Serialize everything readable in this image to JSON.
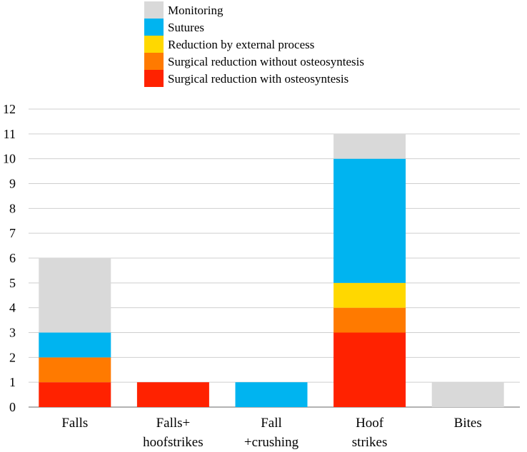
{
  "chart_data": {
    "type": "bar",
    "stacked": true,
    "categories": [
      [
        "Falls"
      ],
      [
        "Falls+",
        "hoofstrikes"
      ],
      [
        "Fall",
        "+crushing"
      ],
      [
        "Hoof",
        "strikes"
      ],
      [
        "Bites"
      ]
    ],
    "series": [
      {
        "name": "Surgical reduction with osteosyntesis",
        "color": "#ff2200",
        "values": [
          1,
          1,
          0,
          3,
          0
        ]
      },
      {
        "name": "Surgical reduction without osteosyntesis",
        "color": "#ff7a00",
        "values": [
          1,
          0,
          0,
          1,
          0
        ]
      },
      {
        "name": "Reduction by external process",
        "color": "#ffd800",
        "values": [
          0,
          0,
          0,
          1,
          0
        ]
      },
      {
        "name": "Sutures",
        "color": "#00b4f0",
        "values": [
          1,
          0,
          1,
          5,
          0
        ]
      },
      {
        "name": "Monitoring",
        "color": "#d9d9d9",
        "values": [
          3,
          0,
          0,
          1,
          1
        ]
      }
    ],
    "legend_order": [
      "Monitoring",
      "Sutures",
      "Reduction by external process",
      "Surgical reduction without osteosyntesis",
      "Surgical reduction with osteosyntesis"
    ],
    "legend_position": "top",
    "ylim": [
      0,
      12
    ],
    "yticks": [
      "0",
      "1",
      "2",
      "3",
      "4",
      "5",
      "6",
      "7",
      "8",
      "9",
      "10",
      "11",
      "12"
    ],
    "grid": true
  }
}
